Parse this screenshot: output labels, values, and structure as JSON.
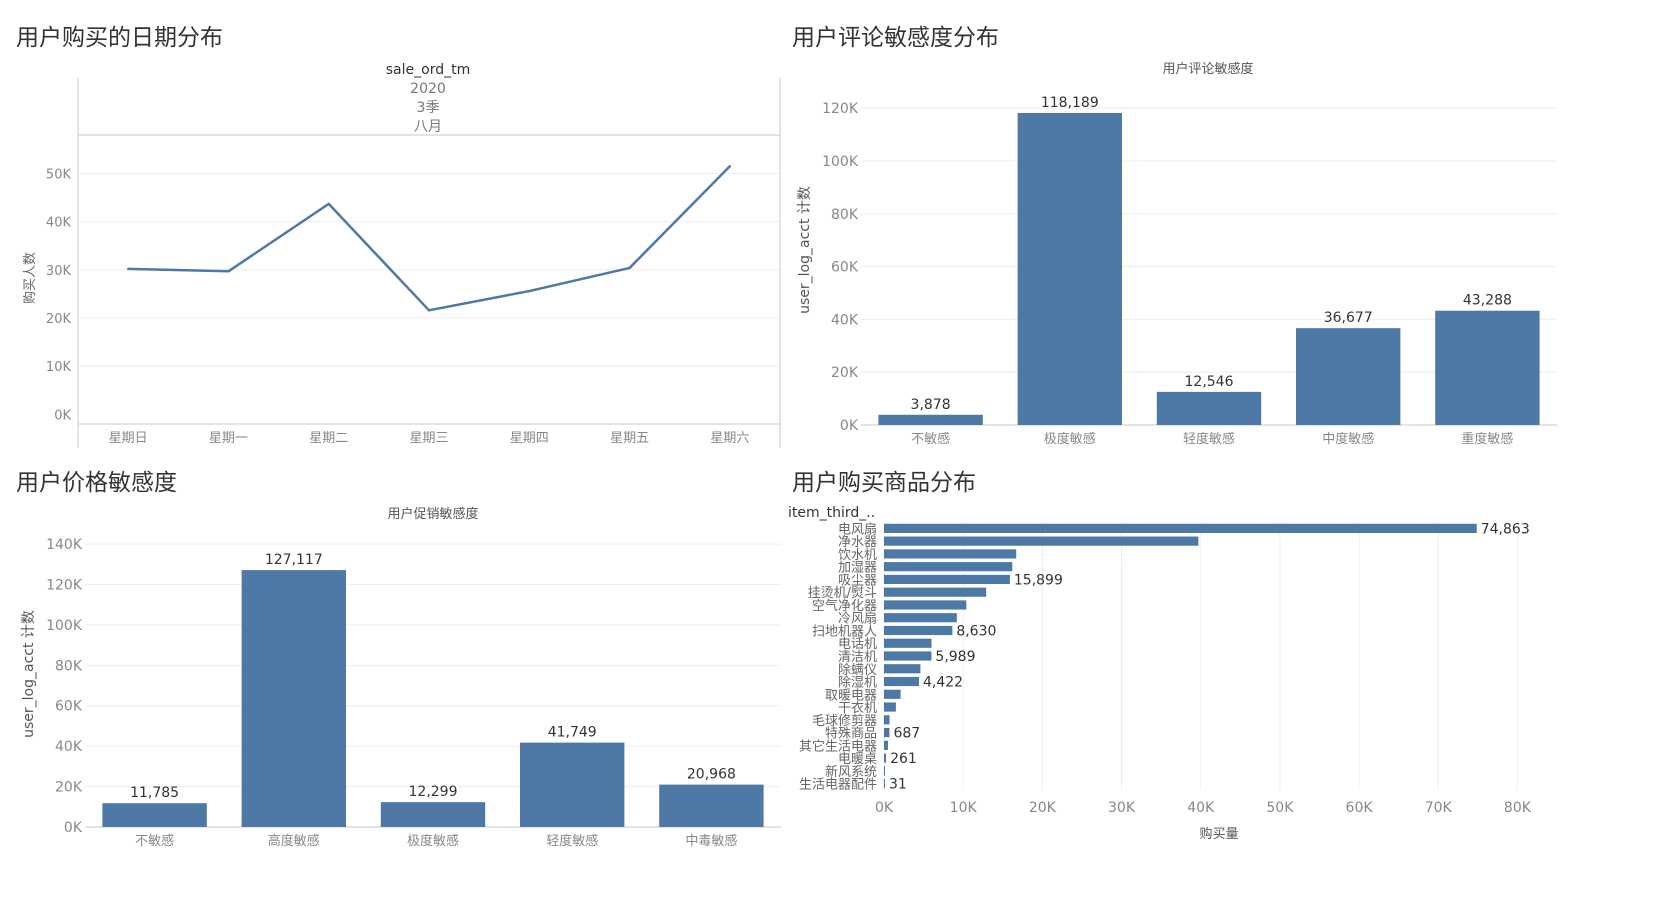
{
  "panels": {
    "p1_title": "用户购买的日期分布",
    "p2_title": "用户评论敏感度分布",
    "p3_title": "用户价格敏感度",
    "p4_title": "用户购买商品分布"
  },
  "colors": {
    "bar": "#4e79a7",
    "line": "#4e79a7",
    "grid": "#eeeeee",
    "axis": "#c8c8c8",
    "text": "#555555"
  },
  "chart_data": [
    {
      "type": "line",
      "header": [
        "sale_ord_tm",
        "2020",
        "3季",
        "八月"
      ],
      "ylabel": "购买人数",
      "x": [
        "星期日",
        "星期一",
        "星期二",
        "星期三",
        "星期四",
        "星期五",
        "星期六"
      ],
      "values": [
        30200,
        29700,
        43700,
        21600,
        25600,
        30400,
        51500
      ],
      "yticks": [
        0,
        10000,
        20000,
        30000,
        40000,
        50000
      ],
      "ytick_labels": [
        "0K",
        "10K",
        "20K",
        "30K",
        "40K",
        "50K"
      ],
      "ylim": [
        -2000,
        58000
      ],
      "grid": true
    },
    {
      "type": "bar",
      "title": "用户评论敏感度",
      "ylabel": "user_log_acct 计数",
      "categories": [
        "不敏感",
        "极度敏感",
        "轻度敏感",
        "中度敏感",
        "重度敏感"
      ],
      "values": [
        3878,
        118189,
        12546,
        36677,
        43288
      ],
      "data_labels": [
        "3,878",
        "118,189",
        "12,546",
        "36,677",
        "43,288"
      ],
      "yticks": [
        0,
        20000,
        40000,
        60000,
        80000,
        100000,
        120000
      ],
      "ytick_labels": [
        "0K",
        "20K",
        "40K",
        "60K",
        "80K",
        "100K",
        "120K"
      ],
      "ylim": [
        0,
        125000
      ],
      "grid": true
    },
    {
      "type": "bar",
      "title": "用户促销敏感度",
      "ylabel": "user_log_acct 计数",
      "categories": [
        "不敏感",
        "高度敏感",
        "极度敏感",
        "轻度敏感",
        "中毒敏感"
      ],
      "values": [
        11785,
        127117,
        12299,
        41749,
        20968
      ],
      "data_labels": [
        "11,785",
        "127,117",
        "12,299",
        "41,749",
        "20,968"
      ],
      "yticks": [
        0,
        20000,
        40000,
        60000,
        80000,
        100000,
        120000,
        140000
      ],
      "ytick_labels": [
        "0K",
        "20K",
        "40K",
        "60K",
        "80K",
        "100K",
        "120K",
        "140K"
      ],
      "ylim": [
        0,
        143000
      ],
      "grid": true
    },
    {
      "type": "bar",
      "orientation": "horizontal",
      "header": "item_third_..",
      "xlabel": "购买量",
      "categories": [
        "电风扇",
        "净水器",
        "饮水机",
        "加湿器",
        "吸尘器",
        "挂烫机/熨斗",
        "空气净化器",
        "冷风扇",
        "扫地机器人",
        "电话机",
        "清洁机",
        "除螨仪",
        "除湿机",
        "取暖电器",
        "干衣机",
        "毛球修剪器",
        "特殊商品",
        "其它生活电器",
        "电暖桌",
        "新风系统",
        "生活电器配件"
      ],
      "values": [
        74863,
        39700,
        16700,
        16200,
        15899,
        12900,
        10400,
        9200,
        8630,
        6000,
        5989,
        4600,
        4422,
        2100,
        1500,
        700,
        687,
        500,
        261,
        80,
        31
      ],
      "data_labels": [
        "74,863",
        "",
        "",
        "",
        "15,899",
        "",
        "",
        "",
        "8,630",
        "",
        "5,989",
        "",
        "4,422",
        "",
        "",
        "",
        "687",
        "",
        "261",
        "",
        "31"
      ],
      "xticks": [
        0,
        10000,
        20000,
        30000,
        40000,
        50000,
        60000,
        70000,
        80000
      ],
      "xtick_labels": [
        "0K",
        "10K",
        "20K",
        "30K",
        "40K",
        "50K",
        "60K",
        "70K",
        "80K"
      ],
      "xlim": [
        0,
        85000
      ],
      "grid": true
    }
  ]
}
